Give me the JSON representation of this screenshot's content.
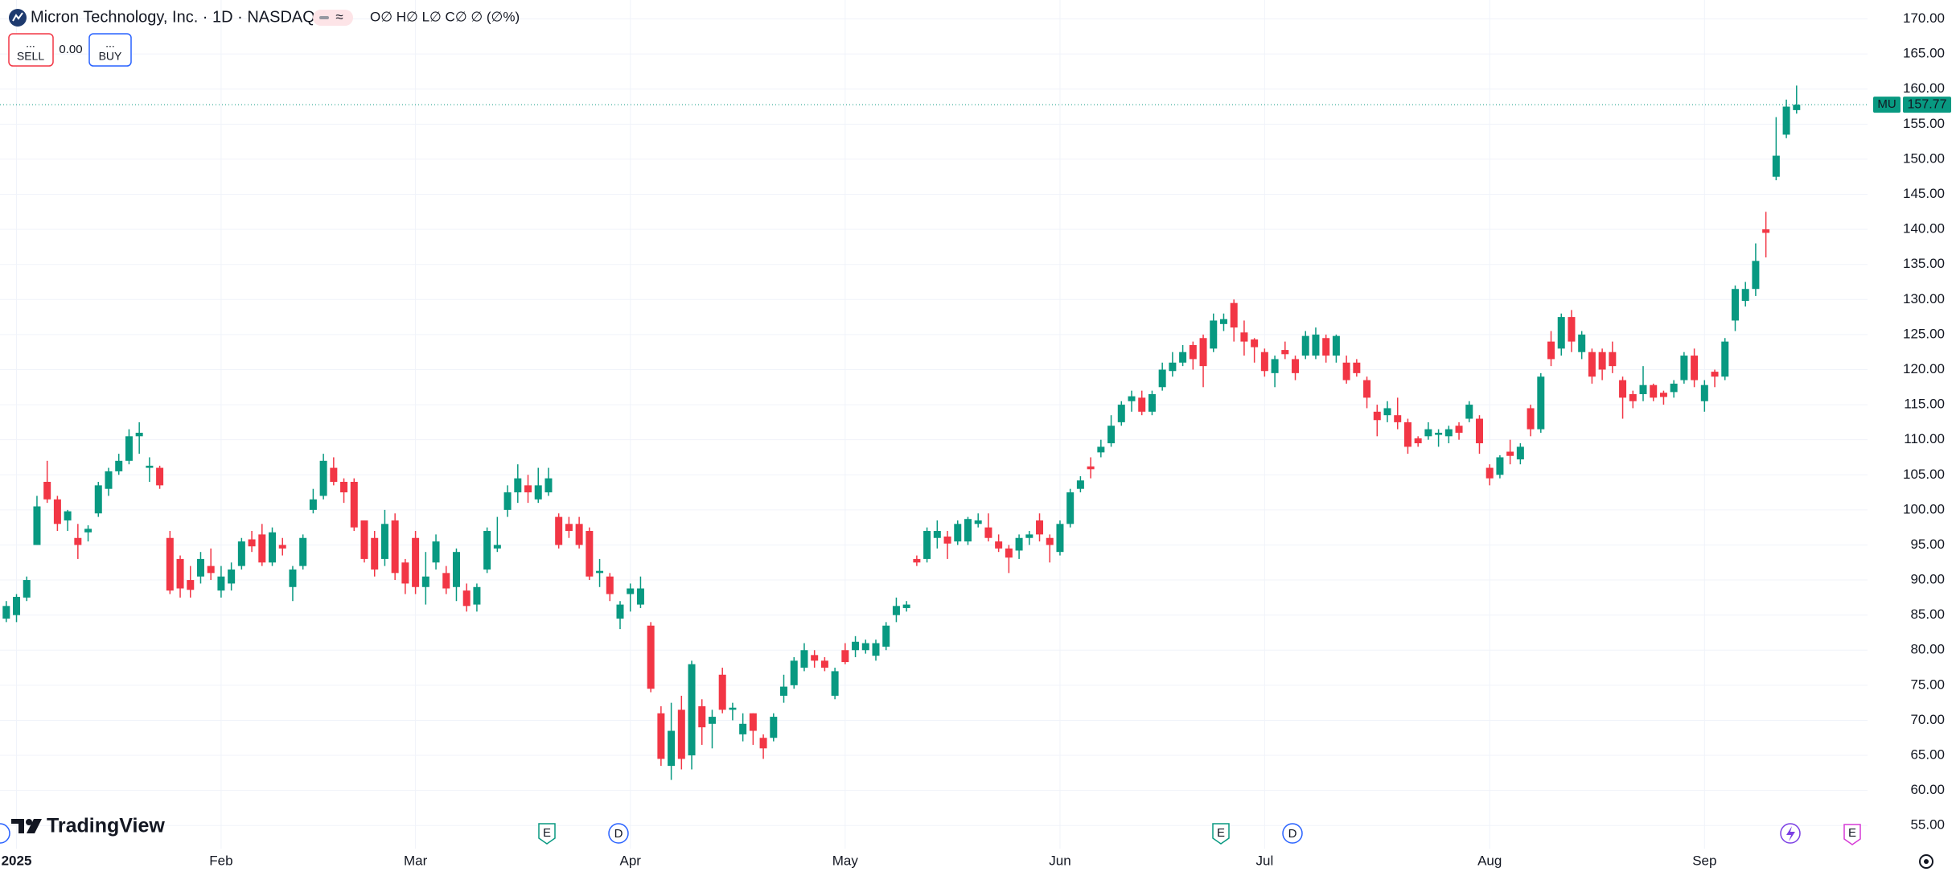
{
  "chart_data": {
    "type": "candlestick",
    "title": "Micron Technology, Inc. · 1D · NASDAQ",
    "ohlc_legend": "O∅ H∅ L∅ C∅ ∅ (∅%)",
    "trade": {
      "sell_price": "...",
      "sell": "SELL",
      "spread": "0.00",
      "buy_price": "...",
      "buy": "BUY"
    },
    "brand": "TradingView",
    "events": [
      "E",
      "D",
      "E",
      "D",
      "E"
    ],
    "last_price": {
      "symbol": "MU",
      "value": 157.77
    },
    "up_color": "#089981",
    "down_color": "#f23645",
    "grid": true,
    "ylim": [
      51.7,
      172.7
    ],
    "yticks": [
      {
        "value": 55,
        "label": "55.00"
      },
      {
        "value": 60,
        "label": "60.00"
      },
      {
        "value": 65,
        "label": "65.00"
      },
      {
        "value": 70,
        "label": "70.00"
      },
      {
        "value": 75,
        "label": "75.00"
      },
      {
        "value": 80,
        "label": "80.00"
      },
      {
        "value": 85,
        "label": "85.00"
      },
      {
        "value": 90,
        "label": "90.00"
      },
      {
        "value": 95,
        "label": "95.00"
      },
      {
        "value": 100,
        "label": "100.00"
      },
      {
        "value": 105,
        "label": "105.00"
      },
      {
        "value": 110,
        "label": "110.00"
      },
      {
        "value": 115,
        "label": "115.00"
      },
      {
        "value": 120,
        "label": "120.00"
      },
      {
        "value": 125,
        "label": "125.00"
      },
      {
        "value": 130,
        "label": "130.00"
      },
      {
        "value": 135,
        "label": "135.00"
      },
      {
        "value": 140,
        "label": "140.00"
      },
      {
        "value": 145,
        "label": "145.00"
      },
      {
        "value": 150,
        "label": "150.00"
      },
      {
        "value": 155,
        "label": "155.00"
      },
      {
        "value": 160,
        "label": "160.00"
      },
      {
        "value": 165,
        "label": "165.00"
      },
      {
        "value": 170,
        "label": "170.00"
      }
    ],
    "categories": [
      null,
      "2025",
      null,
      null,
      null,
      null,
      null,
      null,
      null,
      null,
      null,
      null,
      null,
      null,
      null,
      null,
      null,
      null,
      null,
      null,
      null,
      "Feb",
      null,
      null,
      null,
      null,
      null,
      null,
      null,
      null,
      null,
      null,
      null,
      null,
      null,
      null,
      null,
      null,
      null,
      null,
      "Mar",
      null,
      null,
      null,
      null,
      null,
      null,
      null,
      null,
      null,
      null,
      null,
      null,
      null,
      null,
      null,
      null,
      null,
      null,
      null,
      null,
      "Apr",
      null,
      null,
      null,
      null,
      null,
      null,
      null,
      null,
      null,
      null,
      null,
      null,
      null,
      null,
      null,
      null,
      null,
      null,
      null,
      null,
      "May",
      null,
      null,
      null,
      null,
      null,
      null,
      null,
      null,
      null,
      null,
      null,
      null,
      null,
      null,
      null,
      null,
      null,
      null,
      null,
      null,
      "Jun",
      null,
      null,
      null,
      null,
      null,
      null,
      null,
      null,
      null,
      null,
      null,
      null,
      null,
      null,
      null,
      null,
      null,
      null,
      null,
      "Jul",
      null,
      null,
      null,
      null,
      null,
      null,
      null,
      null,
      null,
      null,
      null,
      null,
      null,
      null,
      null,
      null,
      null,
      null,
      null,
      null,
      null,
      "Aug",
      null,
      null,
      null,
      null,
      null,
      null,
      null,
      null,
      null,
      null,
      null,
      null,
      null,
      null,
      null,
      null,
      null,
      null,
      null,
      null,
      "Sep",
      null,
      null,
      null,
      null,
      null,
      null,
      null,
      null,
      null
    ],
    "open": [
      84.5,
      85,
      87.5,
      95,
      104,
      101.5,
      98.5,
      96,
      96.8,
      99.5,
      103,
      105.5,
      107,
      110.5,
      106,
      106,
      96,
      93,
      90,
      90.5,
      92,
      88.5,
      89.5,
      92,
      95.8,
      96.5,
      92.5,
      95,
      89,
      92,
      100,
      102,
      106,
      104,
      104,
      98.5,
      96,
      93,
      98.5,
      92.5,
      96,
      89,
      92.5,
      91,
      89,
      88.5,
      86.5,
      91.5,
      94.5,
      100,
      102.5,
      103.5,
      101.5,
      102.5,
      99,
      98,
      98,
      97,
      91,
      90.5,
      84.5,
      88,
      86.5,
      83.5,
      71,
      63.5,
      71.5,
      65,
      72,
      69.5,
      76.5,
      71.5,
      68,
      71,
      67.5,
      67.5,
      73.5,
      75,
      77.5,
      79.3,
      78.5,
      73.5,
      80,
      80,
      80,
      79.2,
      80.5,
      85,
      86,
      93,
      93,
      96,
      96.2,
      95.5,
      95.5,
      98,
      97.5,
      95.5,
      94.5,
      94.2,
      96,
      98.5,
      96,
      94,
      98,
      103,
      106.2,
      108.2,
      109.5,
      112.5,
      115.5,
      116,
      114,
      117.5,
      119.8,
      121,
      123.5,
      124.5,
      123,
      126.5,
      129.5,
      125.3,
      124.3,
      122.5,
      119.5,
      122.8,
      121.5,
      122,
      122,
      124.5,
      122,
      121,
      121,
      118.5,
      114,
      113.5,
      113.5,
      112.5,
      110.2,
      110.5,
      110.7,
      110.5,
      112,
      113,
      113,
      106,
      105,
      108.3,
      107.2,
      114.5,
      111.5,
      124,
      123,
      127.5,
      122.5,
      122.5,
      122.5,
      122.5,
      118.5,
      116.5,
      116.5,
      117.8,
      116.7,
      116.8,
      118.5,
      122,
      115.5,
      119.7,
      119,
      127,
      129.8,
      131.5,
      140,
      147.5,
      153.5,
      157
    ],
    "high": [
      87,
      88,
      90.5,
      102,
      107,
      102,
      100,
      98,
      97.8,
      104,
      106,
      108,
      111.5,
      112.5,
      107.5,
      106.3,
      97,
      93.5,
      92,
      94,
      94.5,
      92,
      92.5,
      96,
      97,
      98,
      97.5,
      96,
      92,
      96.5,
      103,
      108,
      107.5,
      104.5,
      104.5,
      98.5,
      97,
      100,
      99.5,
      93,
      97,
      94,
      96.5,
      92,
      94.5,
      89.5,
      89.5,
      97.5,
      99,
      103.5,
      106.5,
      105,
      106,
      106,
      99.5,
      99,
      99,
      97.5,
      93,
      91,
      87,
      89.5,
      90.5,
      84,
      72,
      72.5,
      73.5,
      78.5,
      73,
      71.5,
      77.5,
      72.5,
      71,
      71,
      68,
      71,
      76.5,
      79,
      81,
      80,
      79,
      77.5,
      81,
      82,
      81.5,
      81.5,
      84,
      87.5,
      87,
      93.5,
      97.5,
      98.5,
      97,
      98.5,
      99,
      99.5,
      99.5,
      96.5,
      95,
      96.5,
      97,
      99.5,
      96.5,
      98.5,
      103,
      104.8,
      107.5,
      110,
      113.5,
      115.5,
      117,
      117,
      117,
      121,
      122.5,
      123.5,
      124,
      125,
      128,
      128,
      130,
      127,
      124.5,
      123,
      122,
      124,
      122,
      125.5,
      126,
      125,
      125,
      122,
      121.5,
      119,
      115,
      115.5,
      116,
      113,
      110.5,
      112.5,
      111.5,
      112,
      112.5,
      115.5,
      113.5,
      106.5,
      107.8,
      110,
      109.5,
      115,
      119.5,
      125.5,
      128,
      128.5,
      125.5,
      123,
      123,
      124,
      119,
      117,
      120.5,
      118,
      117,
      118.5,
      122.5,
      123,
      118.5,
      120,
      124.5,
      132,
      132.5,
      138,
      142.5,
      156,
      158.5,
      160.5
    ],
    "low": [
      84,
      84,
      87,
      95,
      101,
      97,
      97,
      93,
      95.5,
      99,
      102,
      105,
      106.5,
      108,
      104,
      103,
      88,
      87.5,
      87.5,
      89.5,
      90,
      87.5,
      88.5,
      91.5,
      94,
      92,
      92,
      93.5,
      87,
      91.5,
      99.5,
      101.5,
      103.5,
      101,
      97,
      92.5,
      90.5,
      92,
      90,
      88,
      88,
      86.5,
      91.5,
      88,
      87,
      85.5,
      85.5,
      91,
      94,
      99,
      101,
      101,
      101,
      102,
      94.5,
      96,
      94.5,
      90,
      89,
      87,
      83,
      85.5,
      86,
      74,
      63.5,
      61.5,
      63,
      63,
      66.5,
      66,
      71,
      70,
      67,
      66.5,
      64.5,
      67,
      72.5,
      74.5,
      77,
      77.5,
      77,
      73,
      78,
      79,
      79.5,
      78.5,
      80,
      84,
      85.5,
      92,
      92.5,
      94.5,
      93,
      95,
      95,
      97.5,
      95.5,
      94,
      91,
      93,
      95,
      95.5,
      92.5,
      93.5,
      97.5,
      102.5,
      104.5,
      107.5,
      109,
      112,
      114,
      113.5,
      113.5,
      117,
      119,
      120.5,
      120,
      117.5,
      122.5,
      125.5,
      124,
      122,
      121,
      119,
      117.5,
      121.5,
      118.5,
      121.5,
      121.5,
      121,
      121,
      118,
      119,
      114.5,
      110.5,
      112.5,
      111.5,
      108,
      109,
      110,
      109,
      109.5,
      110,
      112.5,
      108,
      103.5,
      104.5,
      106.5,
      106.5,
      110.5,
      111,
      120.5,
      122,
      122.5,
      121.5,
      118,
      118.5,
      119.5,
      113,
      114.5,
      115.5,
      115.5,
      115,
      116,
      118,
      117.5,
      114,
      117.5,
      118.5,
      125.5,
      129,
      130.5,
      136,
      147,
      153,
      156.5
    ],
    "close": [
      86.3,
      87.6,
      90,
      100.5,
      101.5,
      98,
      99.8,
      95,
      97.3,
      103.5,
      105.5,
      107,
      110.5,
      111,
      106.3,
      103.5,
      88.5,
      88.8,
      88.6,
      93,
      91,
      90.5,
      91.5,
      95.5,
      94.8,
      92.5,
      96.8,
      94.5,
      91.5,
      96,
      101.5,
      107,
      104,
      102.5,
      97.5,
      93,
      91.5,
      98,
      91,
      89.5,
      89,
      90.5,
      95.5,
      88.8,
      94,
      86.3,
      89,
      97,
      95,
      102.5,
      104.5,
      102.5,
      103.5,
      104.5,
      95,
      97,
      95,
      90.5,
      91.3,
      88,
      86.5,
      88.8,
      88.8,
      74.5,
      64.5,
      68.5,
      64.5,
      78,
      69,
      70.5,
      71.5,
      71.8,
      69.5,
      68.5,
      66,
      70.5,
      74.8,
      78.5,
      80,
      78.5,
      77.5,
      77,
      78.3,
      81.2,
      81,
      81,
      83.5,
      86.3,
      86.5,
      92.5,
      97,
      97,
      95.2,
      98,
      98.7,
      98.5,
      96,
      94.5,
      93.2,
      96,
      96.5,
      96.5,
      95,
      98,
      102.5,
      104.2,
      105.8,
      109,
      112,
      115,
      116.2,
      114,
      116.5,
      120,
      121,
      122.5,
      121.5,
      120.5,
      127,
      127.2,
      126,
      124,
      123.2,
      119.8,
      121.5,
      122.2,
      119.5,
      124.8,
      125,
      122,
      124.8,
      118.5,
      119.5,
      116,
      112.8,
      114.5,
      112.5,
      109,
      109.5,
      111.5,
      111,
      111.5,
      111,
      115,
      109.5,
      104.5,
      107.5,
      107.7,
      109,
      111.5,
      119,
      121.5,
      127.5,
      124,
      125,
      119,
      120,
      120.5,
      116,
      115.5,
      117.8,
      116,
      116.1,
      118,
      122,
      118.5,
      117.8,
      119,
      124,
      131.5,
      131.5,
      135.5,
      139.5,
      150.5,
      157.5,
      157.77
    ]
  }
}
